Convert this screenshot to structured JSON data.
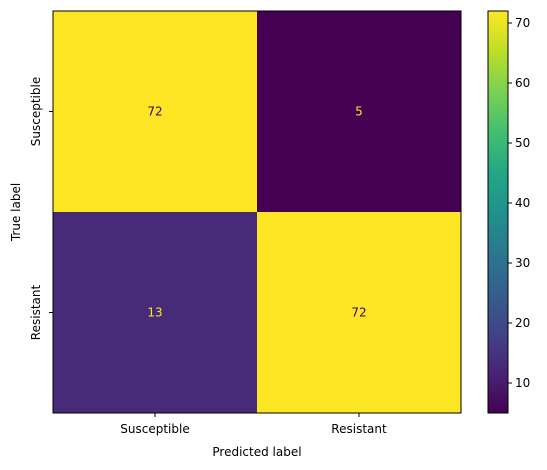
{
  "chart_data": {
    "type": "heatmap",
    "title": "",
    "xlabel": "Predicted label",
    "ylabel": "True label",
    "x_categories": [
      "Susceptible",
      "Resistant"
    ],
    "y_categories": [
      "Susceptible",
      "Resistant"
    ],
    "values": [
      [
        72,
        5
      ],
      [
        13,
        72
      ]
    ],
    "colormap": "viridis",
    "colorbar": {
      "vmin": 5,
      "vmax": 72,
      "ticks": [
        10,
        20,
        30,
        40,
        50,
        60,
        70
      ]
    },
    "colors": {
      "high": "#fde725",
      "low": "#440154",
      "text_on_dark": "#fde725",
      "text_on_light": "#440154"
    }
  }
}
